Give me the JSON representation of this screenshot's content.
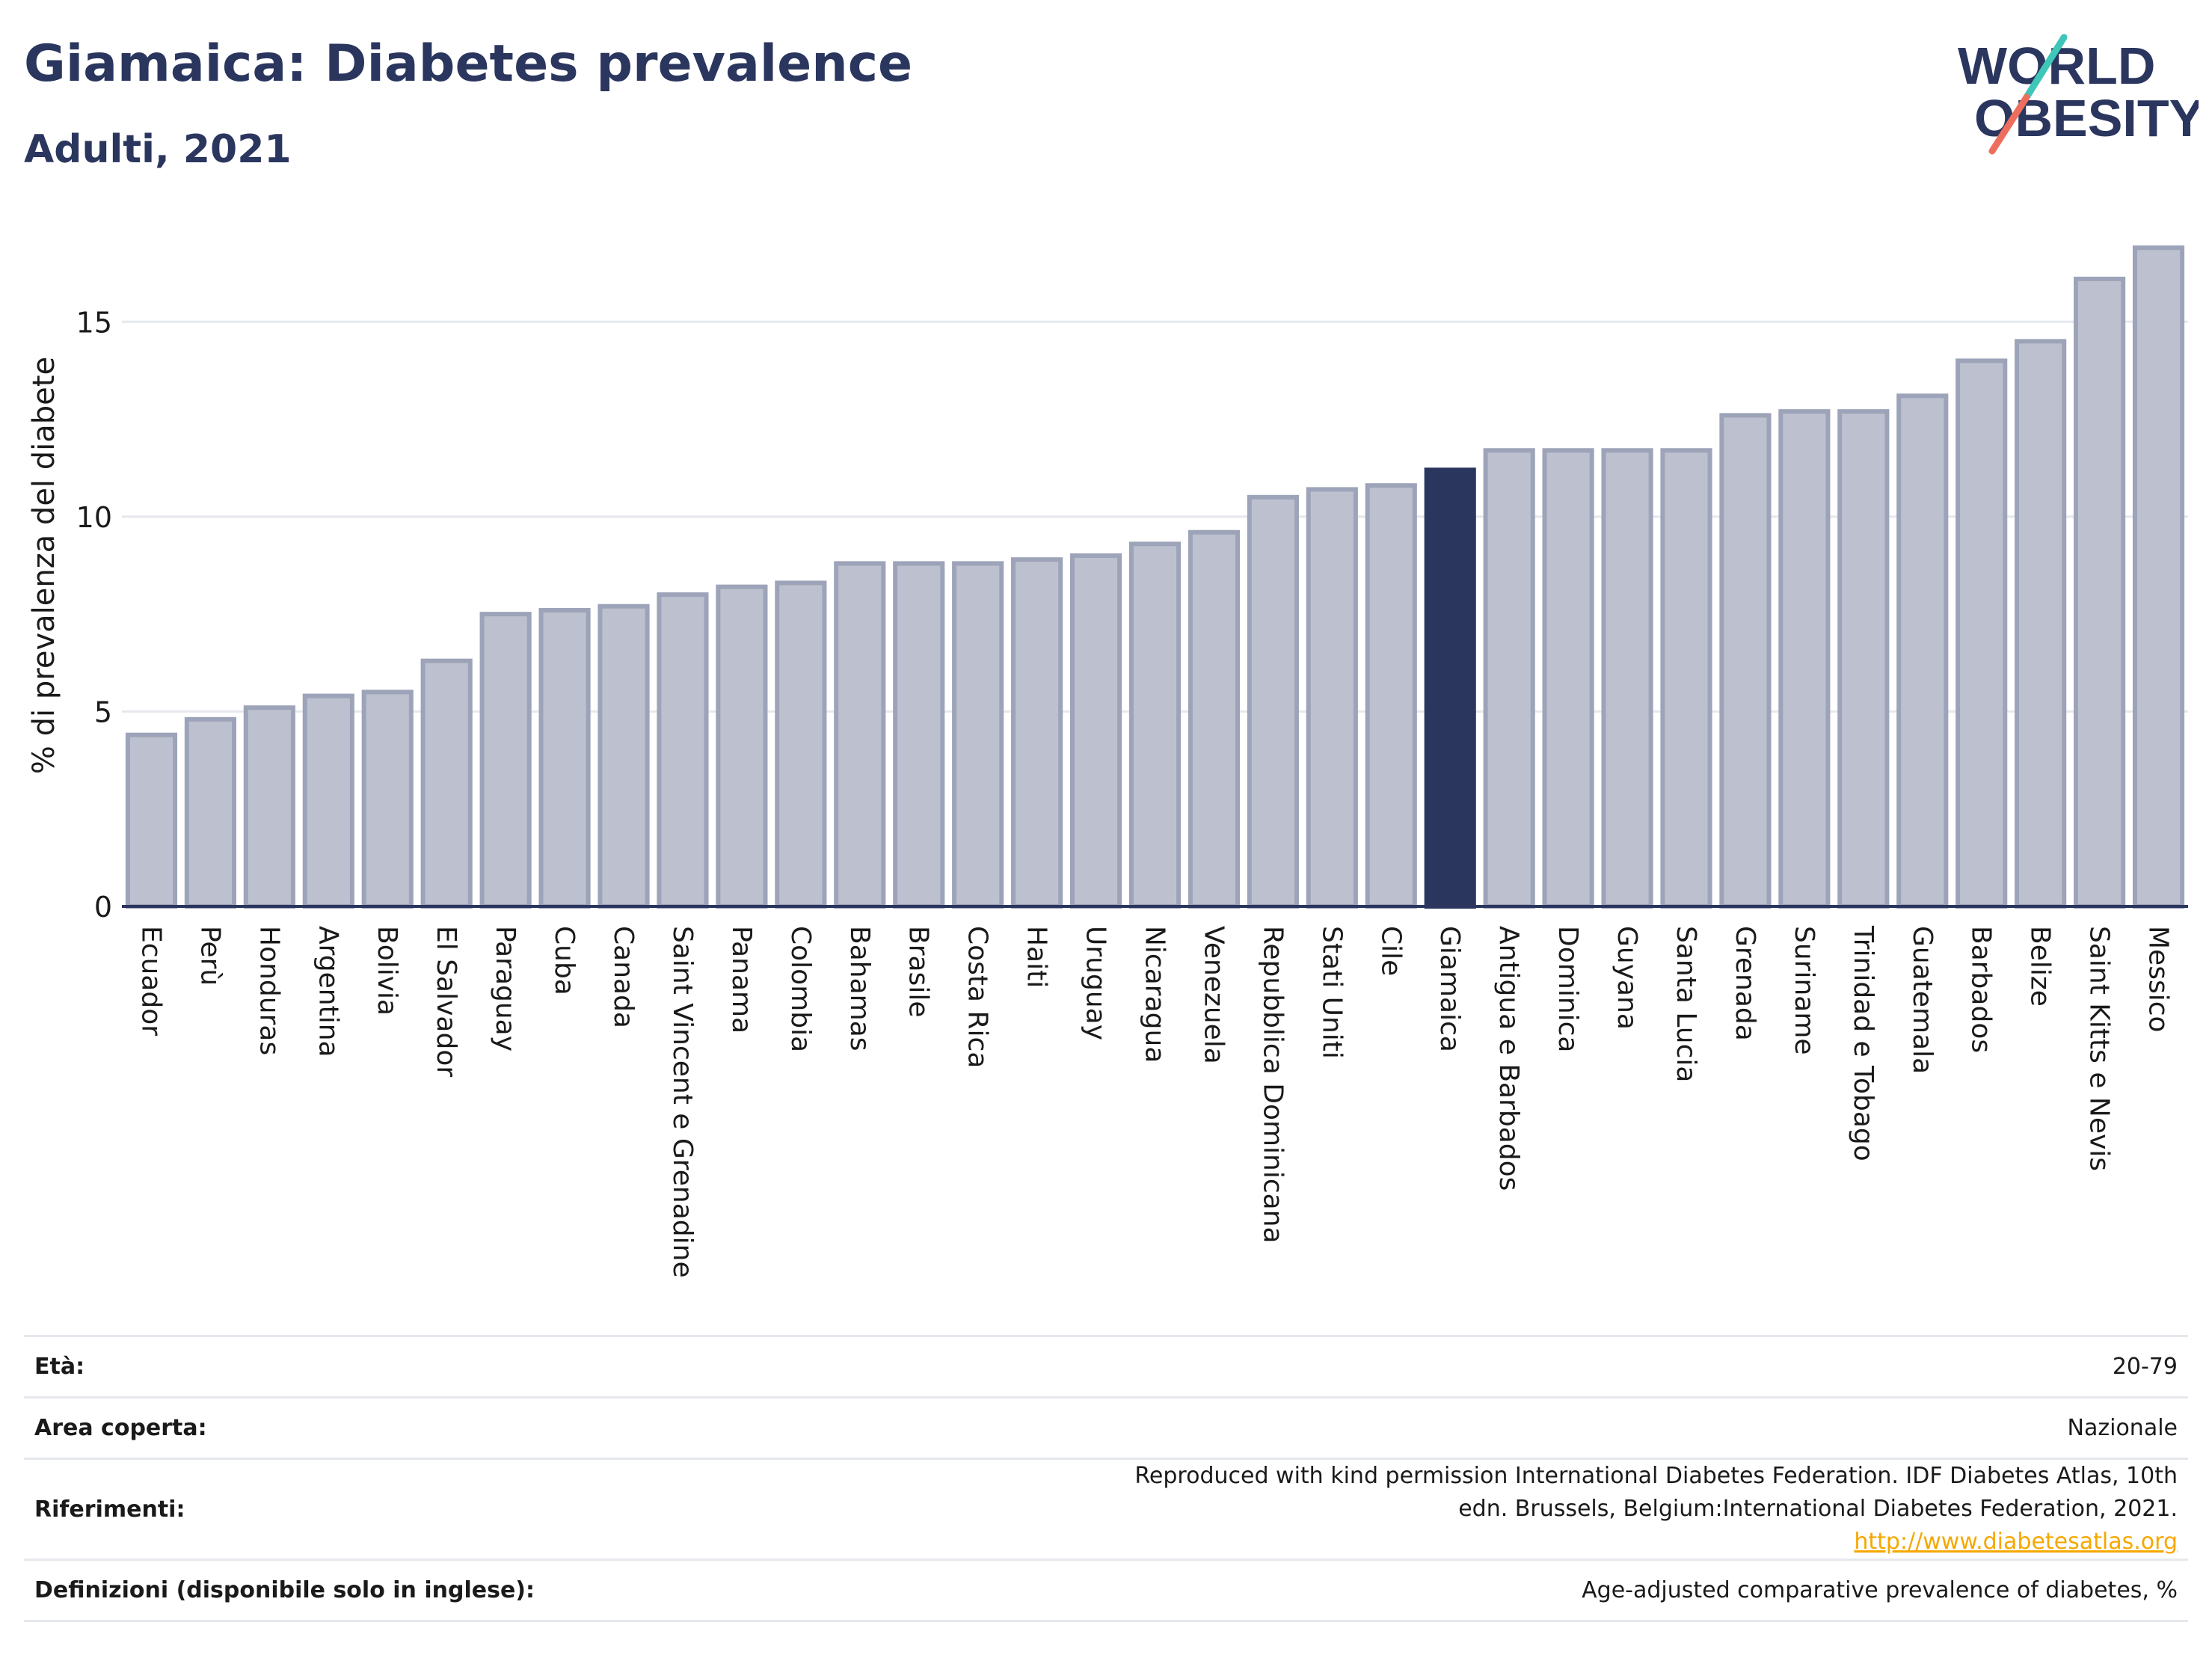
{
  "title": "Giamaica: Diabetes prevalence",
  "subtitle": "Adulti, 2021",
  "logo": {
    "line1": "WORLD",
    "line2": "OBESITY"
  },
  "colors": {
    "bar": "#bdc1cf",
    "bar_border": "#9da3b8",
    "highlight": "#2b365f",
    "grid": "#e6e8ee",
    "axis_text": "#1a1a1a",
    "title": "#2b365f",
    "link": "#f5a800",
    "logo_teal": "#3ec6b8",
    "logo_red": "#ee6e5e"
  },
  "chart_data": {
    "type": "bar",
    "ylabel": "% di prevalenza del diabete",
    "xlabel": "",
    "ylim": [
      0,
      17.5
    ],
    "yticks": [
      0,
      5,
      10,
      15
    ],
    "grid": true,
    "highlight": "Giamaica",
    "categories": [
      "Ecuador",
      "Perù",
      "Honduras",
      "Argentina",
      "Bolivia",
      "El Salvador",
      "Paraguay",
      "Cuba",
      "Canada",
      "Saint Vincent e Grenadine",
      "Panama",
      "Colombia",
      "Bahamas",
      "Brasile",
      "Costa Rica",
      "Haiti",
      "Uruguay",
      "Nicaragua",
      "Venezuela",
      "Repubblica Dominicana",
      "Stati Uniti",
      "Cile",
      "Giamaica",
      "Antigua e Barbados",
      "Dominica",
      "Guyana",
      "Santa Lucia",
      "Grenada",
      "Suriname",
      "Trinidad e Tobago",
      "Guatemala",
      "Barbados",
      "Belize",
      "Saint Kitts e Nevis",
      "Messico"
    ],
    "values": [
      4.4,
      4.8,
      5.1,
      5.4,
      5.5,
      6.3,
      7.5,
      7.6,
      7.7,
      8.0,
      8.2,
      8.3,
      8.8,
      8.8,
      8.8,
      8.9,
      9.0,
      9.3,
      9.6,
      10.5,
      10.7,
      10.8,
      11.2,
      11.7,
      11.7,
      11.7,
      11.7,
      12.6,
      12.7,
      12.7,
      13.1,
      14.0,
      14.5,
      16.1,
      16.9
    ]
  },
  "meta": [
    {
      "label": "Età:",
      "value": "20-79"
    },
    {
      "label": "Area coperta:",
      "value": "Nazionale"
    },
    {
      "label": "Riferimenti:",
      "value": "Reproduced with kind permission International Diabetes Federation.  IDF Diabetes Atlas, 10th edn. Brussels, Belgium:International Diabetes Federation, 2021.",
      "link": "http://www.diabetesatlas.org"
    },
    {
      "label": "Definizioni (disponibile solo in inglese):",
      "value": "Age-adjusted comparative prevalence of diabetes, %"
    }
  ]
}
